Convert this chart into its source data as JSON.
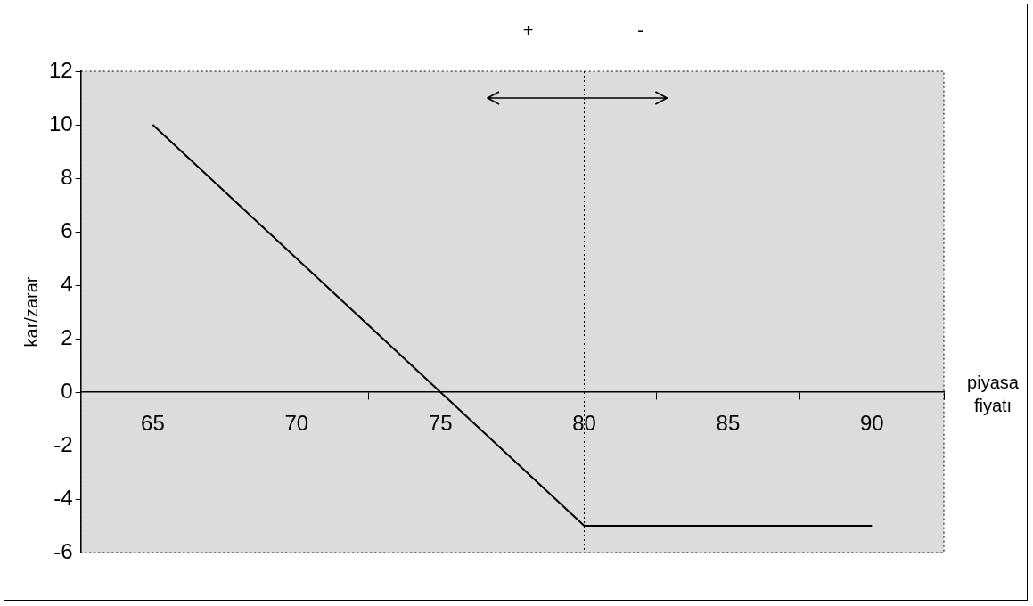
{
  "chart_data": {
    "type": "line",
    "xlabel": "piyasa fiyatı",
    "ylabel": "kar/zarar",
    "categories": [
      "65",
      "70",
      "75",
      "80",
      "85",
      "90"
    ],
    "series": [
      {
        "color": "#000000",
        "values": [
          10,
          5,
          0,
          -5,
          -5,
          -5
        ]
      }
    ],
    "ylim": [
      -6,
      12
    ],
    "yticks": [
      -6,
      -4,
      -2,
      0,
      2,
      4,
      6,
      8,
      10,
      12
    ],
    "grid": false,
    "legend": false,
    "marker": "none",
    "line_style": "solid",
    "ref_lines": [
      {
        "axis": "x",
        "value": "80",
        "color": "#000000",
        "line_style": "dotted"
      }
    ],
    "annotations": [
      "+",
      "-"
    ]
  }
}
